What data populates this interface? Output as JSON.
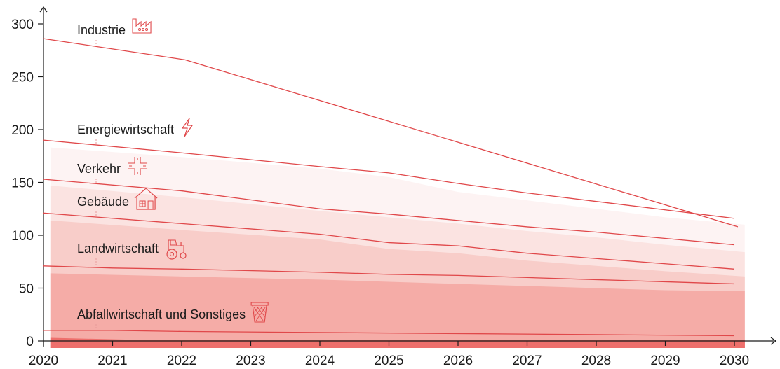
{
  "chart_data": {
    "type": "line",
    "ylim": [
      0,
      300
    ],
    "xlim": [
      2020,
      2030
    ],
    "x_ticks": [
      "2020",
      "2021",
      "2022",
      "2023",
      "2024",
      "2025",
      "2026",
      "2027",
      "2028",
      "2029",
      "2030"
    ],
    "y_ticks": [
      "0",
      "50",
      "100",
      "150",
      "200",
      "250",
      "300"
    ],
    "series": [
      {
        "name": "Industrie",
        "icon": "factory-icon",
        "x": [
          2020,
          2022.05,
          2030.05
        ],
        "y": [
          286,
          266,
          108
        ]
      },
      {
        "name": "Energiewirtschaft",
        "icon": "lightning-bolt-icon",
        "x": [
          2020,
          2022,
          2024,
          2025,
          2026,
          2027,
          2028,
          2029,
          2030
        ],
        "y": [
          190,
          178,
          165,
          159,
          149,
          140,
          132,
          124,
          116
        ]
      },
      {
        "name": "Verkehr",
        "icon": "road-crossing-icon",
        "x": [
          2020,
          2022,
          2024,
          2025,
          2026,
          2027,
          2028,
          2029,
          2030
        ],
        "y": [
          153,
          142,
          125,
          120,
          114,
          108,
          103,
          97,
          91
        ]
      },
      {
        "name": "Gebäude",
        "icon": "house-icon",
        "x": [
          2020,
          2022,
          2024,
          2025,
          2026,
          2027,
          2028,
          2029,
          2030
        ],
        "y": [
          121,
          111,
          101,
          93,
          90,
          83,
          78,
          73,
          68
        ]
      },
      {
        "name": "Landwirtschaft",
        "icon": "tractor-icon",
        "x": [
          2020,
          2021,
          2022,
          2024,
          2025,
          2026,
          2027,
          2028,
          2029,
          2030
        ],
        "y": [
          71,
          69,
          68,
          65,
          63,
          62,
          60,
          58,
          56,
          54
        ]
      },
      {
        "name": "Abfallwirtschaft und Sonstiges",
        "icon": "waste-basket-icon",
        "x": [
          2020,
          2021,
          2022,
          2024,
          2026,
          2028,
          2030
        ],
        "y": [
          10,
          10,
          9,
          8,
          7,
          6,
          5
        ]
      }
    ],
    "stacked_areas": [
      {
        "x": [
          2020.1,
          2022,
          2024,
          2025,
          2026,
          2027,
          2028,
          2029,
          2030.15
        ],
        "y": [
          183,
          174,
          163,
          155,
          141,
          133,
          125,
          117,
          110
        ],
        "color": "#fdf3f3"
      },
      {
        "x": [
          2020.1,
          2022,
          2024,
          2025,
          2026,
          2027,
          2028,
          2029,
          2030.15
        ],
        "y": [
          147,
          136,
          123,
          117,
          111,
          104,
          98,
          91,
          84
        ],
        "color": "#fbe3e1"
      },
      {
        "x": [
          2020.1,
          2022,
          2024,
          2025,
          2026,
          2027,
          2028,
          2029,
          2030.15
        ],
        "y": [
          114,
          105,
          96,
          87,
          83,
          76,
          71,
          66,
          61
        ],
        "color": "#f8cdc9"
      },
      {
        "x": [
          2020.1,
          2022,
          2024,
          2025,
          2026,
          2027,
          2028,
          2029,
          2030.15
        ],
        "y": [
          64,
          61,
          58,
          56,
          54,
          52,
          50,
          48,
          47
        ],
        "color": "#f5aca7"
      },
      {
        "x": [
          2020.1,
          2022,
          2024,
          2026,
          2028,
          2030.15
        ],
        "y": [
          3,
          0,
          0,
          0,
          0,
          0
        ],
        "color": "#ee6f6c"
      }
    ],
    "colors": {
      "line": "#e0484a",
      "icon": "#e0484a",
      "axis": "#1a1a1a",
      "connector": "#e79a9a",
      "bottom_band": "#ee6f6c"
    }
  }
}
